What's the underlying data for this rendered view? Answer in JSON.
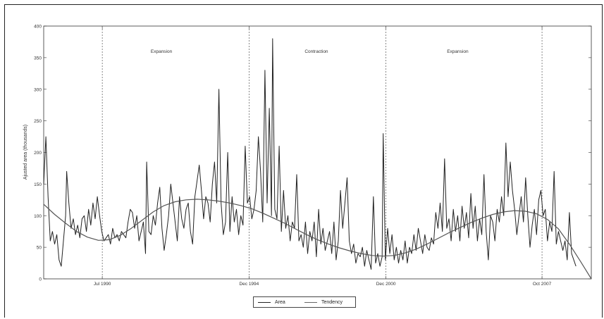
{
  "chart_data": {
    "type": "line",
    "title": "",
    "xlabel": "",
    "ylabel": "Ajusted area (thousands)",
    "ylim": [
      0,
      400
    ],
    "yticks": [
      0,
      50,
      100,
      150,
      200,
      250,
      300,
      350,
      400
    ],
    "xlim": [
      0,
      100
    ],
    "xticks": [
      {
        "x": 10.7,
        "label": "Jul 1990"
      },
      {
        "x": 37.5,
        "label": "Dec 1994"
      },
      {
        "x": 62.5,
        "label": "Dec 2000"
      },
      {
        "x": 91.0,
        "label": "Oct 2007"
      }
    ],
    "vlines": [
      10.7,
      37.5,
      62.5,
      91.0
    ],
    "regions": [
      {
        "x": 21.5,
        "label": "Expansion"
      },
      {
        "x": 49.8,
        "label": "Contraction"
      },
      {
        "x": 75.6,
        "label": "Expansion"
      }
    ],
    "grid": false,
    "legend_position": "bottom-center",
    "series": [
      {
        "name": "Area",
        "points": [
          [
            0.0,
            150
          ],
          [
            0.4,
            225
          ],
          [
            0.8,
            130
          ],
          [
            1.2,
            60
          ],
          [
            1.6,
            75
          ],
          [
            2.0,
            55
          ],
          [
            2.4,
            70
          ],
          [
            2.8,
            30
          ],
          [
            3.2,
            20
          ],
          [
            3.6,
            60
          ],
          [
            4.0,
            100
          ],
          [
            4.2,
            170
          ],
          [
            4.6,
            120
          ],
          [
            5.0,
            80
          ],
          [
            5.4,
            95
          ],
          [
            5.8,
            70
          ],
          [
            6.2,
            85
          ],
          [
            6.6,
            65
          ],
          [
            7.0,
            95
          ],
          [
            7.4,
            100
          ],
          [
            7.8,
            75
          ],
          [
            8.2,
            110
          ],
          [
            8.6,
            85
          ],
          [
            9.0,
            120
          ],
          [
            9.4,
            95
          ],
          [
            9.8,
            130
          ],
          [
            10.2,
            100
          ],
          [
            10.6,
            75
          ],
          [
            11.0,
            60
          ],
          [
            11.4,
            65
          ],
          [
            11.8,
            70
          ],
          [
            12.2,
            55
          ],
          [
            12.6,
            80
          ],
          [
            13.0,
            65
          ],
          [
            13.4,
            70
          ],
          [
            13.8,
            60
          ],
          [
            14.2,
            75
          ],
          [
            14.6,
            70
          ],
          [
            15.0,
            65
          ],
          [
            15.4,
            90
          ],
          [
            15.8,
            110
          ],
          [
            16.2,
            105
          ],
          [
            16.6,
            80
          ],
          [
            17.0,
            100
          ],
          [
            17.4,
            60
          ],
          [
            17.8,
            75
          ],
          [
            18.2,
            90
          ],
          [
            18.6,
            40
          ],
          [
            18.8,
            185
          ],
          [
            19.2,
            75
          ],
          [
            19.6,
            70
          ],
          [
            20.0,
            100
          ],
          [
            20.4,
            85
          ],
          [
            20.8,
            120
          ],
          [
            21.2,
            145
          ],
          [
            21.6,
            80
          ],
          [
            22.0,
            45
          ],
          [
            22.4,
            70
          ],
          [
            22.8,
            100
          ],
          [
            23.2,
            150
          ],
          [
            23.6,
            120
          ],
          [
            24.0,
            90
          ],
          [
            24.4,
            60
          ],
          [
            24.8,
            130
          ],
          [
            25.2,
            95
          ],
          [
            25.6,
            80
          ],
          [
            26.0,
            110
          ],
          [
            26.4,
            120
          ],
          [
            26.8,
            75
          ],
          [
            27.2,
            55
          ],
          [
            27.6,
            130
          ],
          [
            28.0,
            155
          ],
          [
            28.4,
            180
          ],
          [
            28.8,
            140
          ],
          [
            29.2,
            95
          ],
          [
            29.6,
            130
          ],
          [
            30.0,
            120
          ],
          [
            30.4,
            90
          ],
          [
            30.8,
            150
          ],
          [
            31.2,
            185
          ],
          [
            31.6,
            120
          ],
          [
            32.0,
            300
          ],
          [
            32.4,
            120
          ],
          [
            32.8,
            70
          ],
          [
            33.2,
            90
          ],
          [
            33.6,
            200
          ],
          [
            34.0,
            75
          ],
          [
            34.4,
            130
          ],
          [
            34.8,
            90
          ],
          [
            35.2,
            110
          ],
          [
            35.6,
            70
          ],
          [
            36.0,
            100
          ],
          [
            36.4,
            85
          ],
          [
            36.8,
            210
          ],
          [
            37.2,
            120
          ],
          [
            37.6,
            130
          ],
          [
            38.0,
            95
          ],
          [
            38.4,
            110
          ],
          [
            38.8,
            140
          ],
          [
            39.2,
            225
          ],
          [
            39.6,
            170
          ],
          [
            40.0,
            90
          ],
          [
            40.4,
            330
          ],
          [
            40.8,
            120
          ],
          [
            41.2,
            270
          ],
          [
            41.6,
            100
          ],
          [
            41.8,
            380
          ],
          [
            42.2,
            110
          ],
          [
            42.6,
            95
          ],
          [
            43.0,
            210
          ],
          [
            43.4,
            75
          ],
          [
            43.8,
            140
          ],
          [
            44.2,
            80
          ],
          [
            44.6,
            100
          ],
          [
            45.0,
            60
          ],
          [
            45.4,
            90
          ],
          [
            45.8,
            80
          ],
          [
            46.2,
            165
          ],
          [
            46.6,
            60
          ],
          [
            47.0,
            70
          ],
          [
            47.4,
            50
          ],
          [
            47.8,
            90
          ],
          [
            48.2,
            40
          ],
          [
            48.6,
            75
          ],
          [
            49.0,
            60
          ],
          [
            49.4,
            90
          ],
          [
            49.8,
            35
          ],
          [
            50.2,
            110
          ],
          [
            50.6,
            55
          ],
          [
            51.0,
            80
          ],
          [
            51.4,
            45
          ],
          [
            51.8,
            60
          ],
          [
            52.2,
            75
          ],
          [
            52.6,
            40
          ],
          [
            53.0,
            90
          ],
          [
            53.4,
            30
          ],
          [
            53.8,
            60
          ],
          [
            54.2,
            140
          ],
          [
            54.6,
            80
          ],
          [
            55.0,
            120
          ],
          [
            55.4,
            160
          ],
          [
            55.8,
            60
          ],
          [
            56.2,
            40
          ],
          [
            56.6,
            55
          ],
          [
            57.0,
            25
          ],
          [
            57.4,
            40
          ],
          [
            57.8,
            35
          ],
          [
            58.2,
            50
          ],
          [
            58.6,
            20
          ],
          [
            59.0,
            45
          ],
          [
            59.4,
            30
          ],
          [
            59.8,
            15
          ],
          [
            60.2,
            130
          ],
          [
            60.6,
            25
          ],
          [
            61.0,
            40
          ],
          [
            61.4,
            20
          ],
          [
            61.8,
            35
          ],
          [
            62.0,
            230
          ],
          [
            62.4,
            30
          ],
          [
            62.8,
            80
          ],
          [
            63.2,
            40
          ],
          [
            63.6,
            70
          ],
          [
            64.0,
            30
          ],
          [
            64.4,
            50
          ],
          [
            64.8,
            25
          ],
          [
            65.2,
            45
          ],
          [
            65.6,
            30
          ],
          [
            66.0,
            60
          ],
          [
            66.4,
            25
          ],
          [
            66.8,
            50
          ],
          [
            67.2,
            40
          ],
          [
            67.6,
            70
          ],
          [
            68.0,
            45
          ],
          [
            68.4,
            80
          ],
          [
            68.8,
            60
          ],
          [
            69.2,
            40
          ],
          [
            69.6,
            70
          ],
          [
            70.0,
            50
          ],
          [
            70.4,
            45
          ],
          [
            70.8,
            65
          ],
          [
            71.2,
            55
          ],
          [
            71.6,
            105
          ],
          [
            72.0,
            80
          ],
          [
            72.4,
            120
          ],
          [
            72.8,
            75
          ],
          [
            73.2,
            190
          ],
          [
            73.6,
            80
          ],
          [
            74.0,
            95
          ],
          [
            74.4,
            60
          ],
          [
            74.8,
            110
          ],
          [
            75.2,
            75
          ],
          [
            75.6,
            100
          ],
          [
            76.0,
            60
          ],
          [
            76.4,
            115
          ],
          [
            76.8,
            80
          ],
          [
            77.2,
            105
          ],
          [
            77.6,
            65
          ],
          [
            78.0,
            135
          ],
          [
            78.4,
            80
          ],
          [
            78.8,
            115
          ],
          [
            79.2,
            60
          ],
          [
            79.6,
            95
          ],
          [
            80.0,
            70
          ],
          [
            80.4,
            165
          ],
          [
            80.8,
            75
          ],
          [
            81.2,
            30
          ],
          [
            81.6,
            100
          ],
          [
            82.0,
            90
          ],
          [
            82.4,
            60
          ],
          [
            82.8,
            110
          ],
          [
            83.2,
            90
          ],
          [
            83.6,
            130
          ],
          [
            84.0,
            100
          ],
          [
            84.4,
            215
          ],
          [
            84.8,
            130
          ],
          [
            85.2,
            185
          ],
          [
            85.6,
            140
          ],
          [
            86.0,
            110
          ],
          [
            86.4,
            70
          ],
          [
            86.8,
            100
          ],
          [
            87.2,
            130
          ],
          [
            87.6,
            90
          ],
          [
            88.0,
            160
          ],
          [
            88.4,
            100
          ],
          [
            88.8,
            50
          ],
          [
            89.2,
            85
          ],
          [
            89.6,
            110
          ],
          [
            90.0,
            70
          ],
          [
            90.4,
            125
          ],
          [
            90.8,
            140
          ],
          [
            91.2,
            100
          ],
          [
            91.6,
            110
          ],
          [
            92.0,
            60
          ],
          [
            92.4,
            90
          ],
          [
            92.8,
            75
          ],
          [
            93.2,
            170
          ],
          [
            93.6,
            55
          ],
          [
            94.0,
            75
          ],
          [
            94.4,
            60
          ],
          [
            94.8,
            45
          ],
          [
            95.2,
            60
          ],
          [
            95.6,
            30
          ],
          [
            96.0,
            105
          ],
          [
            96.4,
            40
          ],
          [
            96.8,
            30
          ],
          [
            97.2,
            20
          ]
        ]
      },
      {
        "name": "Tendency",
        "points": [
          [
            0.0,
            118
          ],
          [
            2.0,
            102
          ],
          [
            4.0,
            88
          ],
          [
            6.0,
            75
          ],
          [
            8.0,
            66
          ],
          [
            10.0,
            61
          ],
          [
            12.0,
            62
          ],
          [
            14.0,
            69
          ],
          [
            16.0,
            80
          ],
          [
            18.0,
            93
          ],
          [
            20.0,
            106
          ],
          [
            22.0,
            116
          ],
          [
            24.0,
            122
          ],
          [
            26.0,
            125
          ],
          [
            28.0,
            126
          ],
          [
            30.0,
            125
          ],
          [
            32.0,
            123
          ],
          [
            34.0,
            120
          ],
          [
            36.0,
            116
          ],
          [
            38.0,
            111
          ],
          [
            40.0,
            104
          ],
          [
            42.0,
            96
          ],
          [
            44.0,
            88
          ],
          [
            46.0,
            79
          ],
          [
            48.0,
            70
          ],
          [
            50.0,
            62
          ],
          [
            52.0,
            55
          ],
          [
            54.0,
            49
          ],
          [
            56.0,
            44
          ],
          [
            58.0,
            40
          ],
          [
            60.0,
            37
          ],
          [
            62.0,
            36
          ],
          [
            64.0,
            37
          ],
          [
            66.0,
            41
          ],
          [
            68.0,
            47
          ],
          [
            70.0,
            55
          ],
          [
            72.0,
            64
          ],
          [
            74.0,
            73
          ],
          [
            76.0,
            81
          ],
          [
            78.0,
            89
          ],
          [
            80.0,
            96
          ],
          [
            82.0,
            102
          ],
          [
            84.0,
            106
          ],
          [
            86.0,
            108
          ],
          [
            88.0,
            107
          ],
          [
            90.0,
            103
          ],
          [
            92.0,
            94
          ],
          [
            94.0,
            79
          ],
          [
            96.0,
            55
          ],
          [
            98.0,
            28
          ],
          [
            100.0,
            0
          ]
        ]
      }
    ]
  },
  "legend": {
    "area_label": "Area",
    "tendency_label": "Tendency"
  }
}
